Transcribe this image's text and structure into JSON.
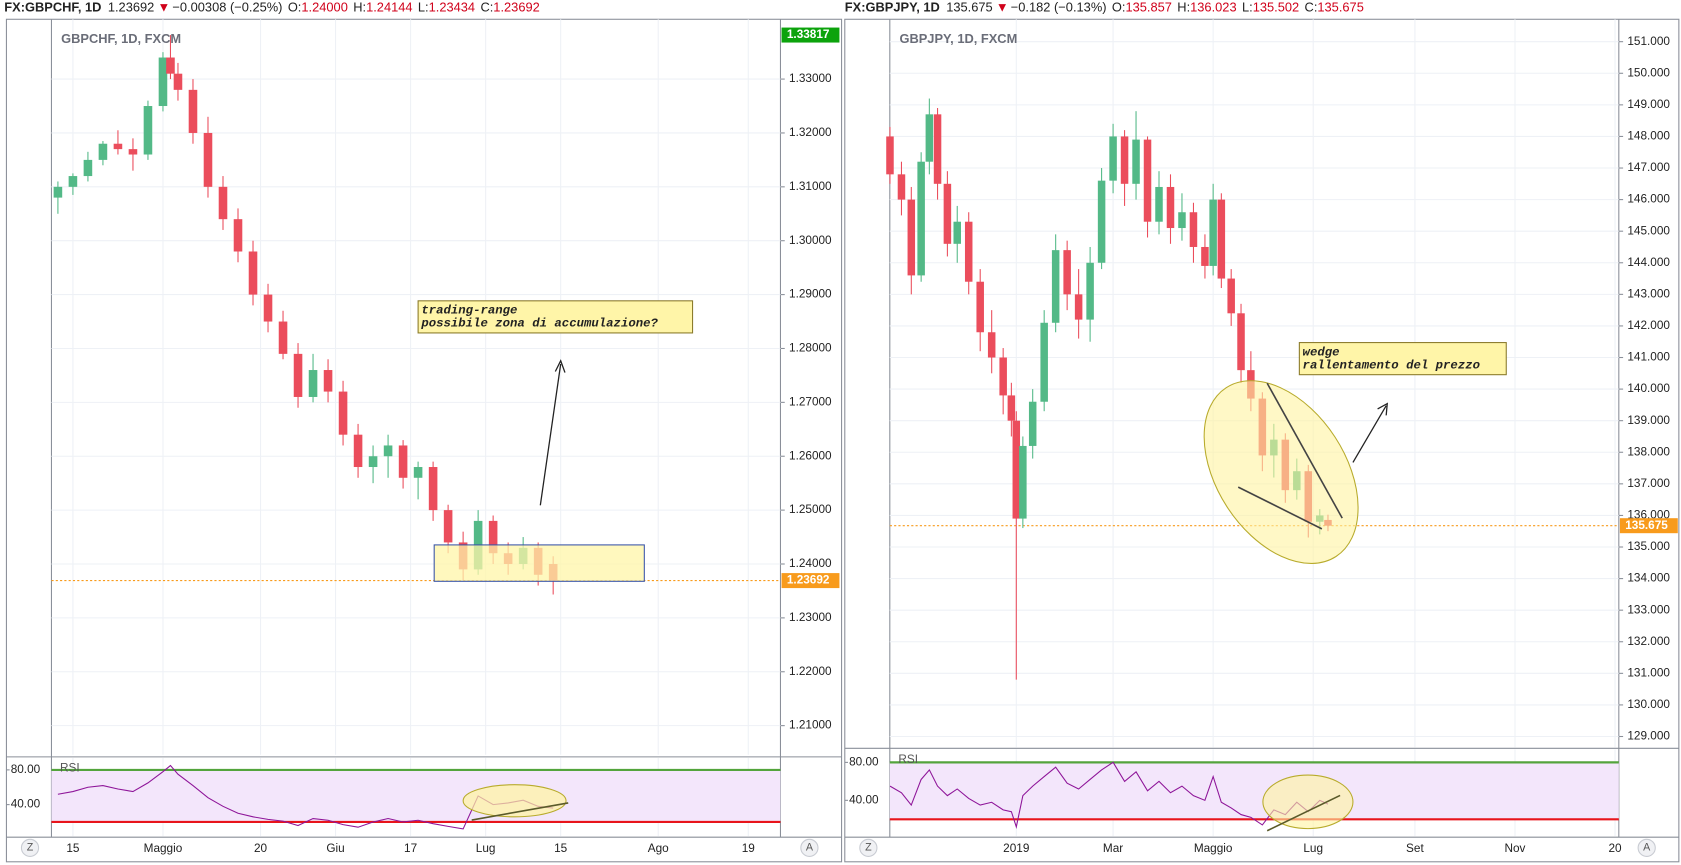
{
  "chart_data": [
    {
      "type": "candlestick",
      "header": {
        "symbol": "FX:GBPCHF, 1D",
        "price": "1.23692",
        "direction": "▼",
        "change": "−0.00308 (−0.25%)",
        "ohlc": [
          {
            "label": "O:",
            "value": "1.24000"
          },
          {
            "label": "H:",
            "value": "1.24144"
          },
          {
            "label": "L:",
            "value": "1.23434"
          },
          {
            "label": "C:",
            "value": "1.23692"
          }
        ]
      },
      "watermark": "GBPCHF, 1D, FXCM",
      "up_color": "#53b987",
      "down_color": "#eb4d5c",
      "x": [
        -2,
        0,
        2,
        4,
        6,
        8,
        10,
        12,
        13,
        14,
        16,
        18,
        20,
        22,
        24,
        26,
        28,
        30,
        32,
        34,
        36,
        38,
        40,
        42,
        44,
        46,
        48,
        50,
        52,
        54,
        56,
        58,
        60,
        62,
        64
      ],
      "open": [
        1.308,
        1.31,
        1.312,
        1.315,
        1.318,
        1.317,
        1.316,
        1.325,
        1.334,
        1.331,
        1.328,
        1.32,
        1.31,
        1.304,
        1.298,
        1.29,
        1.285,
        1.279,
        1.271,
        1.276,
        1.272,
        1.264,
        1.258,
        1.26,
        1.262,
        1.256,
        1.258,
        1.25,
        1.244,
        1.239,
        1.248,
        1.242,
        1.24,
        1.243,
        1.24
      ],
      "high": [
        1.311,
        1.3125,
        1.3165,
        1.3185,
        1.3205,
        1.319,
        1.326,
        1.335,
        1.33817,
        1.333,
        1.33,
        1.323,
        1.312,
        1.306,
        1.3,
        1.292,
        1.287,
        1.281,
        1.279,
        1.278,
        1.274,
        1.266,
        1.262,
        1.264,
        1.263,
        1.259,
        1.259,
        1.251,
        1.246,
        1.25,
        1.249,
        1.244,
        1.245,
        1.244,
        1.24144
      ],
      "low": [
        1.305,
        1.3085,
        1.311,
        1.314,
        1.316,
        1.313,
        1.315,
        1.324,
        1.33,
        1.326,
        1.318,
        1.308,
        1.302,
        1.296,
        1.288,
        1.283,
        1.278,
        1.269,
        1.27,
        1.27,
        1.262,
        1.256,
        1.255,
        1.256,
        1.254,
        1.252,
        1.248,
        1.242,
        1.237,
        1.238,
        1.24,
        1.238,
        1.239,
        1.236,
        1.23434
      ],
      "close": [
        1.31,
        1.312,
        1.315,
        1.318,
        1.317,
        1.316,
        1.325,
        1.334,
        1.331,
        1.328,
        1.32,
        1.31,
        1.304,
        1.298,
        1.29,
        1.285,
        1.279,
        1.271,
        1.276,
        1.272,
        1.264,
        1.258,
        1.26,
        1.262,
        1.256,
        1.258,
        1.25,
        1.244,
        1.239,
        1.248,
        1.242,
        1.24,
        1.243,
        1.238,
        1.23692
      ],
      "xlim": [
        -2.86,
        94.29
      ],
      "xticks": [
        {
          "value": 0,
          "label": "15"
        },
        {
          "value": 12,
          "label": "Maggio"
        },
        {
          "value": 25,
          "label": "20"
        },
        {
          "value": 35,
          "label": "Giu"
        },
        {
          "value": 45,
          "label": "17"
        },
        {
          "value": 55,
          "label": "Lug"
        },
        {
          "value": 65,
          "label": "15"
        },
        {
          "value": 78,
          "label": "Ago"
        },
        {
          "value": 90,
          "label": "19"
        }
      ],
      "ylim": [
        1.2046,
        1.3411
      ],
      "yticks": [
        {
          "value": 1.21,
          "label": "1.21000"
        },
        {
          "value": 1.22,
          "label": "1.22000"
        },
        {
          "value": 1.23,
          "label": "1.23000"
        },
        {
          "value": 1.24,
          "label": "1.24000"
        },
        {
          "value": 1.25,
          "label": "1.25000"
        },
        {
          "value": 1.26,
          "label": "1.26000"
        },
        {
          "value": 1.27,
          "label": "1.27000"
        },
        {
          "value": 1.28,
          "label": "1.28000"
        },
        {
          "value": 1.29,
          "label": "1.29000"
        },
        {
          "value": 1.3,
          "label": "1.30000"
        },
        {
          "value": 1.31,
          "label": "1.31000"
        },
        {
          "value": 1.32,
          "label": "1.32000"
        },
        {
          "value": 1.33,
          "label": "1.33000"
        }
      ],
      "grid": true,
      "last_price": 1.23692,
      "last_color": "#f89b1c",
      "high_marker": 1.33817,
      "high_color": "#0ca30c",
      "annotation": [
        "trading-range",
        "possibile zona di accumulazione?"
      ],
      "scale_buttons": [
        "Z",
        "A"
      ],
      "rsi": {
        "name": "RSI",
        "color": "#8e1599",
        "values": [
          52,
          55,
          60,
          62,
          58,
          55,
          65,
          78,
          85,
          75,
          62,
          48,
          38,
          30,
          26,
          23,
          21,
          16,
          24,
          22,
          17,
          14,
          20,
          24,
          20,
          22,
          18,
          15,
          12,
          50,
          40,
          42,
          45,
          38,
          36
        ],
        "ylim": [
          3.75,
          93.75
        ],
        "yticks": [
          {
            "value": 80,
            "label": "80.00"
          },
          {
            "value": 40,
            "label": "40.00"
          }
        ],
        "bands": [
          80,
          20
        ],
        "band_colors": [
          "#53a43c",
          "#e8141b"
        ]
      }
    },
    {
      "type": "candlestick",
      "header": {
        "symbol": "FX:GBPJPY, 1D",
        "price": "135.675",
        "direction": "▼",
        "change": "−0.182 (−0.13%)",
        "ohlc": [
          {
            "label": "O:",
            "value": "135.857"
          },
          {
            "label": "H:",
            "value": "136.023"
          },
          {
            "label": "L:",
            "value": "135.502"
          },
          {
            "label": "C:",
            "value": "135.675"
          }
        ]
      },
      "watermark": "GBPJPY, 1D, FXCM",
      "up_color": "#53b987",
      "down_color": "#eb4d5c",
      "x": [
        -77,
        -70,
        -64,
        -58,
        -53,
        -48,
        -42,
        -36,
        -29,
        -22,
        -15,
        -8,
        -3,
        0,
        4,
        10,
        17,
        24,
        31,
        38,
        45,
        52,
        59,
        66,
        73,
        80,
        87,
        94,
        101,
        108,
        115,
        120,
        125,
        131,
        137,
        143,
        150,
        157,
        164,
        171,
        178,
        185,
        190
      ],
      "open": [
        148.0,
        146.8,
        146.0,
        143.6,
        147.2,
        148.7,
        146.5,
        144.6,
        145.3,
        143.4,
        141.8,
        141.0,
        139.8,
        139.0,
        135.9,
        138.2,
        139.6,
        142.1,
        144.4,
        143.0,
        142.2,
        144.0,
        146.6,
        148.0,
        146.5,
        147.9,
        145.3,
        146.4,
        145.1,
        145.6,
        144.5,
        143.9,
        146.0,
        143.5,
        142.4,
        140.6,
        139.7,
        137.9,
        138.4,
        136.8,
        137.4,
        135.8,
        135.857
      ],
      "high": [
        148.3,
        147.2,
        146.4,
        147.5,
        149.2,
        148.9,
        146.9,
        145.8,
        145.6,
        143.8,
        142.5,
        141.3,
        140.2,
        139.3,
        138.5,
        140.0,
        142.5,
        144.9,
        144.7,
        143.8,
        144.5,
        147.0,
        148.4,
        148.2,
        148.8,
        148.0,
        146.9,
        146.8,
        146.2,
        145.9,
        144.9,
        146.5,
        146.2,
        143.8,
        142.7,
        141.2,
        139.9,
        138.9,
        138.6,
        137.8,
        137.6,
        136.2,
        136.023
      ],
      "low": [
        146.5,
        145.5,
        143.0,
        143.4,
        146.8,
        146.0,
        144.2,
        144.0,
        143.0,
        141.2,
        140.5,
        139.2,
        138.5,
        130.8,
        135.6,
        137.8,
        139.3,
        141.8,
        142.5,
        141.6,
        141.5,
        143.8,
        146.2,
        145.8,
        146.0,
        144.8,
        144.9,
        144.6,
        144.7,
        144.0,
        143.5,
        143.6,
        143.2,
        142.0,
        140.2,
        139.3,
        137.4,
        137.2,
        136.4,
        136.5,
        135.3,
        135.4,
        135.502
      ],
      "close": [
        146.8,
        146.0,
        143.6,
        147.2,
        148.7,
        146.5,
        144.6,
        145.3,
        143.4,
        141.8,
        141.0,
        139.8,
        139.0,
        135.9,
        138.2,
        139.6,
        142.1,
        144.4,
        143.0,
        142.2,
        144.0,
        146.6,
        148.0,
        146.5,
        147.9,
        145.3,
        146.4,
        145.1,
        145.6,
        144.5,
        143.9,
        146.0,
        143.5,
        142.4,
        140.6,
        139.7,
        137.9,
        138.4,
        136.8,
        137.4,
        135.8,
        136.0,
        135.675
      ],
      "xlim": [
        -77.1,
        367.3
      ],
      "xticks": [
        {
          "value": 0,
          "label": "2019"
        },
        {
          "value": 59,
          "label": "Mar"
        },
        {
          "value": 120,
          "label": "Maggio"
        },
        {
          "value": 181,
          "label": "Lug"
        },
        {
          "value": 243,
          "label": "Set"
        },
        {
          "value": 304,
          "label": "Nov"
        },
        {
          "value": 365,
          "label": "20"
        }
      ],
      "ylim": [
        128.66,
        151.71
      ],
      "yticks": [
        {
          "value": 129,
          "label": "129.000"
        },
        {
          "value": 130,
          "label": "130.000"
        },
        {
          "value": 131,
          "label": "131.000"
        },
        {
          "value": 132,
          "label": "132.000"
        },
        {
          "value": 133,
          "label": "133.000"
        },
        {
          "value": 134,
          "label": "134.000"
        },
        {
          "value": 135,
          "label": "135.000"
        },
        {
          "value": 136,
          "label": "136.000"
        },
        {
          "value": 137,
          "label": "137.000"
        },
        {
          "value": 138,
          "label": "138.000"
        },
        {
          "value": 139,
          "label": "139.000"
        },
        {
          "value": 140,
          "label": "140.000"
        },
        {
          "value": 141,
          "label": "141.000"
        },
        {
          "value": 142,
          "label": "142.000"
        },
        {
          "value": 143,
          "label": "143.000"
        },
        {
          "value": 144,
          "label": "144.000"
        },
        {
          "value": 145,
          "label": "145.000"
        },
        {
          "value": 146,
          "label": "146.000"
        },
        {
          "value": 147,
          "label": "147.000"
        },
        {
          "value": 148,
          "label": "148.000"
        },
        {
          "value": 149,
          "label": "149.000"
        },
        {
          "value": 150,
          "label": "150.000"
        },
        {
          "value": 151,
          "label": "151.000"
        }
      ],
      "grid": true,
      "last_price": 135.675,
      "last_color": "#f89b1c",
      "annotation": [
        "wedge",
        "rallentamento del prezzo"
      ],
      "scale_buttons": [
        "Z",
        "A"
      ],
      "rsi": {
        "name": "RSI",
        "color": "#8e1599",
        "values": [
          55,
          48,
          35,
          62,
          72,
          55,
          45,
          52,
          42,
          35,
          38,
          30,
          28,
          12,
          45,
          55,
          65,
          75,
          58,
          52,
          62,
          72,
          80,
          60,
          70,
          50,
          60,
          48,
          55,
          45,
          40,
          65,
          38,
          32,
          25,
          22,
          14,
          30,
          25,
          38,
          28,
          40,
          36
        ],
        "ylim": [
          2.3,
          93.7
        ],
        "yticks": [
          {
            "value": 80,
            "label": "80.00"
          },
          {
            "value": 40,
            "label": "40.00"
          }
        ],
        "bands": [
          80,
          20
        ],
        "band_colors": [
          "#53a43c",
          "#e8141b"
        ]
      }
    }
  ]
}
